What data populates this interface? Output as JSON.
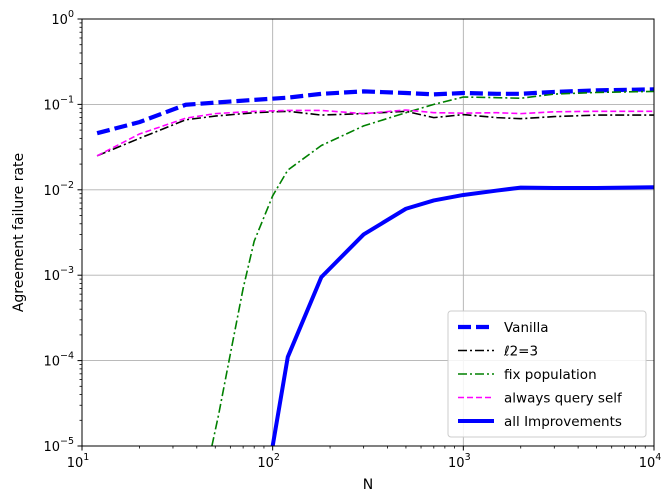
{
  "chart_data": {
    "type": "line",
    "xlabel": "N",
    "ylabel": "Agreement failure rate",
    "xscale": "log",
    "yscale": "log",
    "xlim": [
      10,
      10000
    ],
    "ylim": [
      1e-05,
      1
    ],
    "grid": "major",
    "legend_position": "lower-right",
    "x_ticks": [
      {
        "base": "10",
        "exp": "1",
        "value": 10
      },
      {
        "base": "10",
        "exp": "2",
        "value": 100
      },
      {
        "base": "10",
        "exp": "3",
        "value": 1000
      },
      {
        "base": "10",
        "exp": "4",
        "value": 10000
      }
    ],
    "y_ticks": [
      {
        "base": "10",
        "exp": "0",
        "value": 1
      },
      {
        "base": "10",
        "exp": "−1",
        "value": 0.1
      },
      {
        "base": "10",
        "exp": "−2",
        "value": 0.01
      },
      {
        "base": "10",
        "exp": "−3",
        "value": 0.001
      },
      {
        "base": "10",
        "exp": "−4",
        "value": 0.0001
      },
      {
        "base": "10",
        "exp": "−5",
        "value": 1e-05
      }
    ],
    "series": [
      {
        "name": "Vanilla",
        "color": "#0000ff",
        "style": "dashed-thick",
        "x": [
          12,
          20,
          35,
          50,
          80,
          120,
          180,
          300,
          500,
          700,
          1000,
          1500,
          2000,
          3000,
          5000,
          10000
        ],
        "y": [
          0.046,
          0.062,
          0.099,
          0.105,
          0.113,
          0.12,
          0.133,
          0.142,
          0.136,
          0.131,
          0.136,
          0.133,
          0.133,
          0.14,
          0.146,
          0.15
        ]
      },
      {
        "name": "ℓ2=3",
        "color": "#000000",
        "style": "dashdot",
        "x": [
          12,
          20,
          35,
          50,
          80,
          120,
          180,
          300,
          500,
          700,
          1000,
          1500,
          2000,
          3000,
          5000,
          10000
        ],
        "y": [
          0.025,
          0.04,
          0.066,
          0.073,
          0.08,
          0.083,
          0.075,
          0.078,
          0.083,
          0.07,
          0.076,
          0.07,
          0.068,
          0.072,
          0.075,
          0.075
        ]
      },
      {
        "name": "fix population",
        "color": "#008000",
        "style": "dashdot",
        "x": [
          48,
          52,
          60,
          70,
          80,
          100,
          120,
          180,
          300,
          500,
          700,
          1000,
          1500,
          2000,
          3000,
          5000,
          10000
        ],
        "y": [
          1e-05,
          2.3e-05,
          0.00012,
          0.0007,
          0.0025,
          0.0085,
          0.017,
          0.033,
          0.056,
          0.08,
          0.1,
          0.122,
          0.12,
          0.118,
          0.132,
          0.138,
          0.142
        ]
      },
      {
        "name": "always query self",
        "color": "#ff00ff",
        "style": "dashed",
        "x": [
          12,
          20,
          35,
          50,
          80,
          120,
          180,
          300,
          500,
          700,
          1000,
          1500,
          2000,
          3000,
          5000,
          10000
        ],
        "y": [
          0.025,
          0.045,
          0.069,
          0.078,
          0.083,
          0.085,
          0.085,
          0.078,
          0.086,
          0.08,
          0.079,
          0.08,
          0.078,
          0.082,
          0.083,
          0.083
        ]
      },
      {
        "name": "all Improvements",
        "color": "#0000ff",
        "style": "solid-thick",
        "x": [
          100,
          120,
          180,
          300,
          500,
          700,
          1000,
          1500,
          2000,
          3000,
          5000,
          10000
        ],
        "y": [
          1e-05,
          0.00011,
          0.00095,
          0.003,
          0.006,
          0.0075,
          0.0087,
          0.0098,
          0.0106,
          0.0105,
          0.0105,
          0.0107
        ]
      }
    ]
  }
}
